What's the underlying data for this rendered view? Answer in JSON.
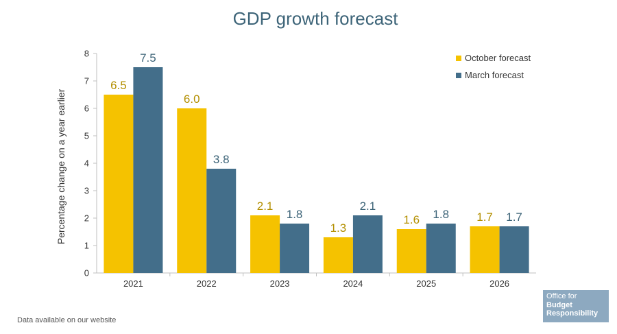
{
  "chart_data": {
    "type": "bar",
    "title": "GDP growth forecast",
    "xlabel": "",
    "ylabel": "Percentage change on a year earlier",
    "ylim": [
      0,
      8
    ],
    "yticks": [
      0,
      1,
      2,
      3,
      4,
      5,
      6,
      7,
      8
    ],
    "categories": [
      "2021",
      "2022",
      "2023",
      "2024",
      "2025",
      "2026"
    ],
    "series": [
      {
        "name": "October forecast",
        "color": "#f5c200",
        "label_color": "#b38f00",
        "values": [
          6.5,
          6.0,
          2.1,
          1.3,
          1.6,
          1.7
        ],
        "labels": [
          "6.5",
          "6.0",
          "2.1",
          "1.3",
          "1.6",
          "1.7"
        ]
      },
      {
        "name": "March forecast",
        "color": "#436e8a",
        "label_color": "#3d6478",
        "values": [
          7.5,
          3.8,
          1.8,
          2.1,
          1.8,
          1.7
        ],
        "labels": [
          "7.5",
          "3.8",
          "1.8",
          "2.1",
          "1.8",
          "1.7"
        ]
      }
    ],
    "legend_position": "top-right"
  },
  "footnote": "Data available on our website",
  "logo": {
    "line1": "Office for",
    "line2": "Budget",
    "line3": "Responsibility"
  }
}
